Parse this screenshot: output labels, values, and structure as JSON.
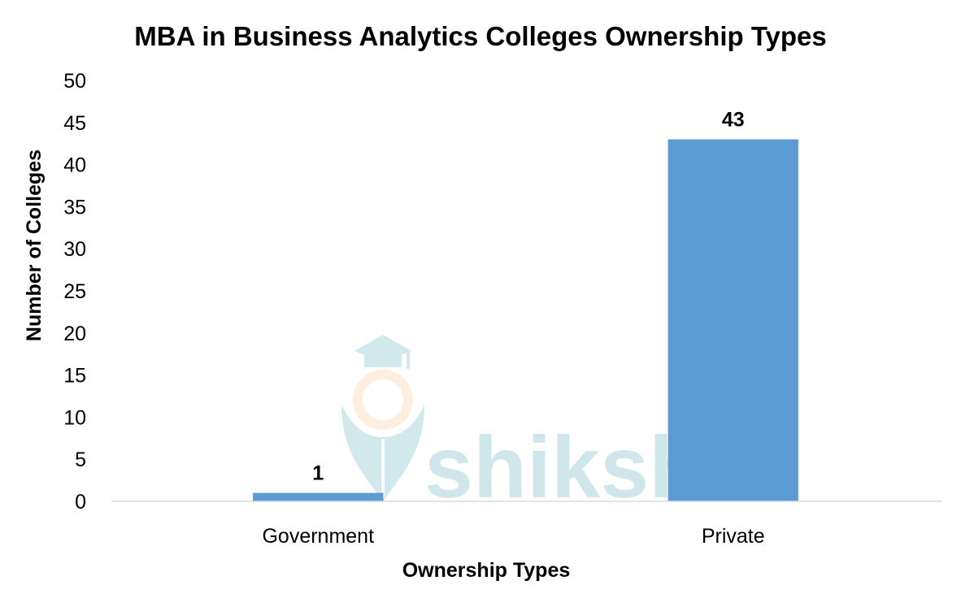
{
  "watermark": {
    "text": "shiksha",
    "color": "#bfe0e3",
    "accent_color": "#fde8cf",
    "icon": "graduation-cap-pen-icon"
  },
  "chart_data": {
    "type": "bar",
    "title": "MBA in Business Analytics Colleges Ownership Types",
    "xlabel": "Ownership Types",
    "ylabel": "Number of Colleges",
    "categories": [
      "Government",
      "Private"
    ],
    "series": [
      {
        "values": [
          1,
          43
        ],
        "color": "#5b9bd5"
      }
    ],
    "data_labels": [
      "1",
      "43"
    ],
    "ylim": [
      0,
      50
    ],
    "yticks": [
      "0",
      "5",
      "10",
      "15",
      "20",
      "25",
      "30",
      "35",
      "40",
      "45",
      "50"
    ],
    "grid": false,
    "legend": "none",
    "axis_color": "#d9d9d9"
  }
}
